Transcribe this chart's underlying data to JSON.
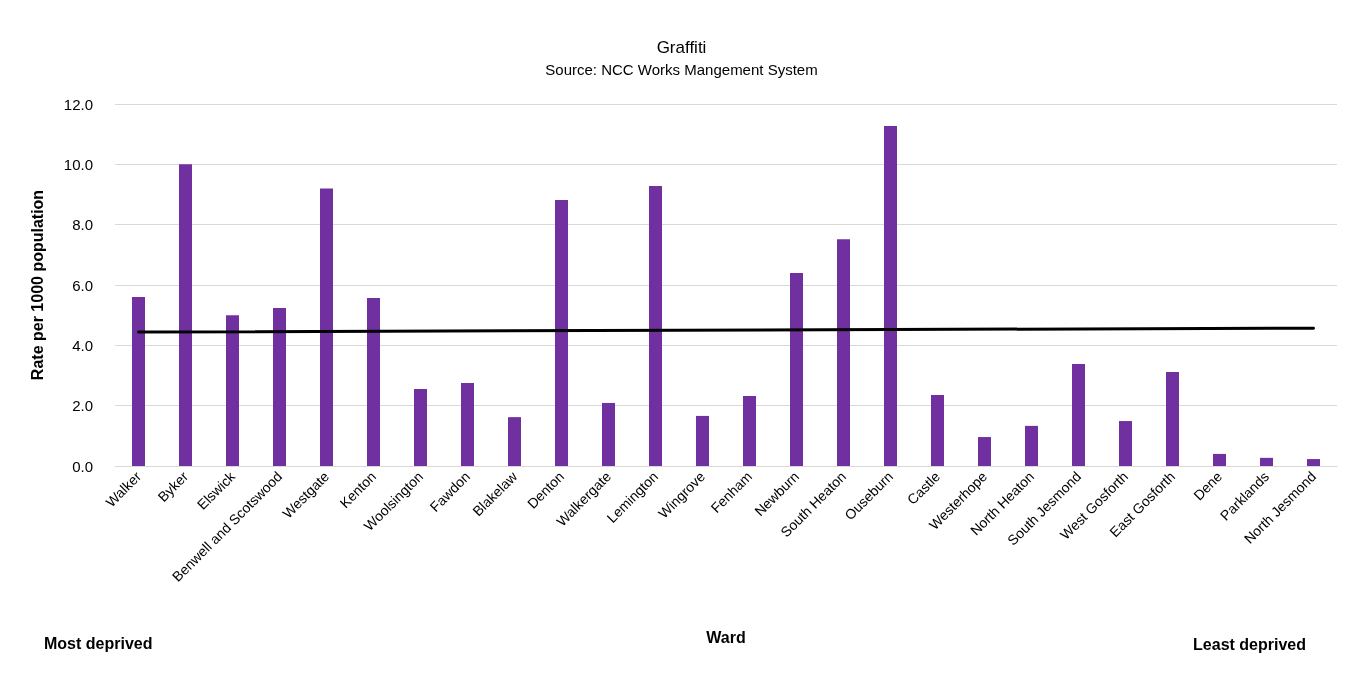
{
  "chart_data": {
    "type": "bar",
    "title": "Graffiti",
    "subtitle": "Source: NCC Works Mangement System",
    "xlabel": "Ward",
    "ylabel": "Rate per 1000 population",
    "categories": [
      "Walker",
      "Byker",
      "Elswick",
      "Benwell and Scotswood",
      "Westgate",
      "Kenton",
      "Woolsington",
      "Fawdon",
      "Blakelaw",
      "Denton",
      "Walkergate",
      "Lemington",
      "Wingrove",
      "Fenham",
      "Newburn",
      "South Heaton",
      "Ouseburn",
      "Castle",
      "Westerhope",
      "North Heaton",
      "South Jesmond",
      "West Gosforth",
      "East Gosforth",
      "Dene",
      "Parklands",
      "North Jesmond"
    ],
    "series": [
      {
        "color": "#7030a0",
        "values": [
          5.6,
          10.0,
          5.0,
          5.24,
          9.2,
          5.57,
          2.55,
          2.75,
          1.62,
          8.82,
          2.09,
          9.28,
          1.66,
          2.32,
          6.4,
          7.52,
          11.27,
          2.35,
          0.96,
          1.33,
          3.38,
          1.49,
          3.12,
          0.4,
          0.27,
          0.23
        ]
      },
      {
        "type": "line",
        "color": "#000000",
        "x": [
          "Walker",
          "North Jesmond"
        ],
        "values": [
          4.44,
          4.57
        ]
      }
    ],
    "ylim": [
      0,
      12
    ],
    "yticks": [
      {
        "value": 0,
        "label": "0.0"
      },
      {
        "value": 2,
        "label": "2.0"
      },
      {
        "value": 4,
        "label": "4.0"
      },
      {
        "value": 6,
        "label": "6.0"
      },
      {
        "value": 8,
        "label": "8.0"
      },
      {
        "value": 10,
        "label": "10.0"
      },
      {
        "value": 12,
        "label": "12.0"
      }
    ],
    "grid": "y",
    "marker": "none",
    "line_style": "solid",
    "annotations": [
      "Most deprived",
      "Least deprived"
    ]
  }
}
